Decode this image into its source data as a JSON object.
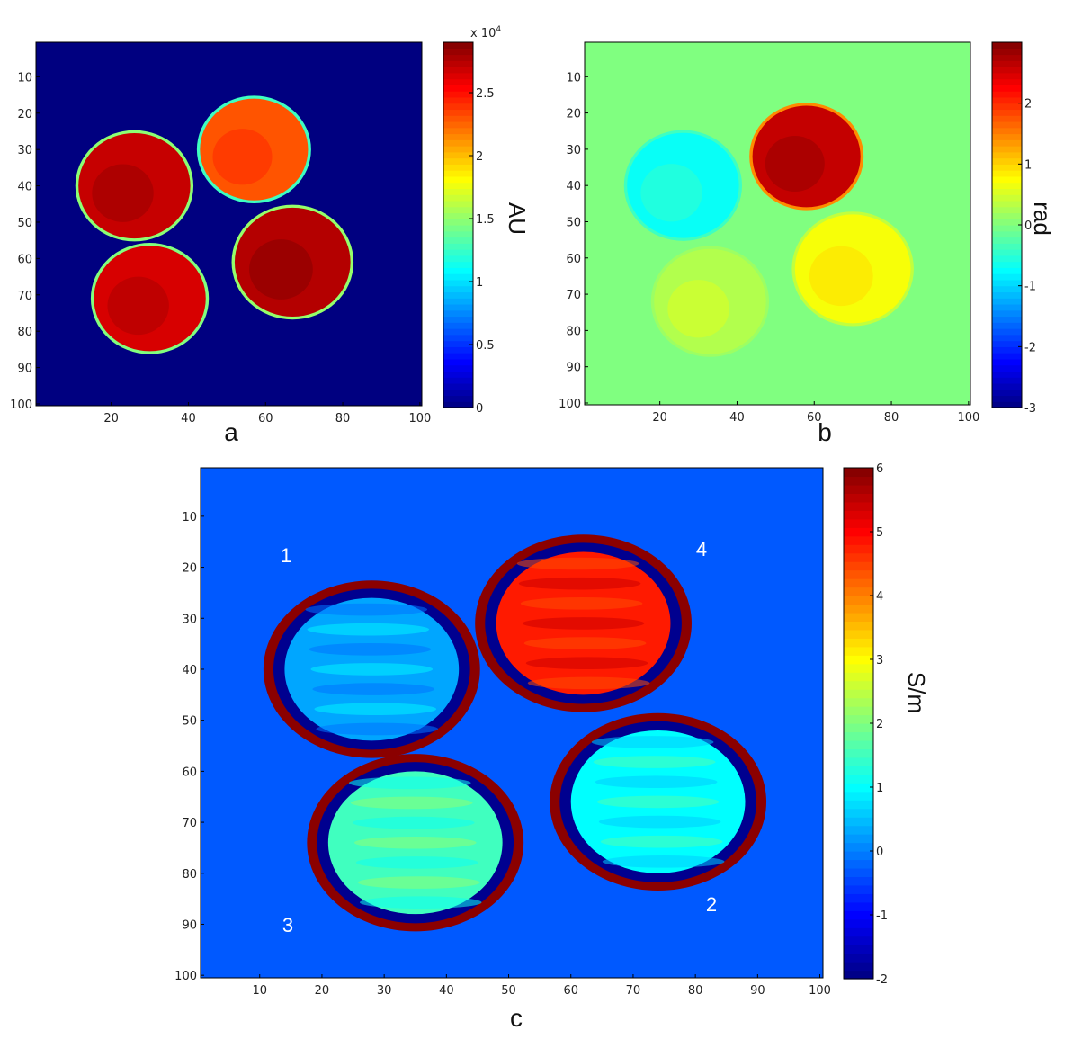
{
  "chart_data": [
    {
      "type": "heatmap",
      "panel_label": "a",
      "colorbar_label": "AU",
      "colorbar_exponent": "x 10",
      "colorbar_exponent_power": "4",
      "clim": [
        0,
        2.9
      ],
      "colorbar_ticks": [
        "0",
        "0.5",
        "1",
        "1.5",
        "2",
        "2.5"
      ],
      "colorbar_tick_values": [
        0,
        0.5,
        1,
        1.5,
        2,
        2.5
      ],
      "xlim": [
        1,
        100
      ],
      "ylim": [
        1,
        100
      ],
      "x_ticks": [
        "20",
        "40",
        "60",
        "80",
        "100"
      ],
      "y_ticks": [
        "10",
        "20",
        "30",
        "40",
        "50",
        "60",
        "70",
        "80",
        "90",
        "100"
      ],
      "background_value": 0,
      "colormap": "jet",
      "objects": [
        {
          "cx": 26,
          "cy": 40,
          "r": 14.5,
          "value": 2.7
        },
        {
          "cx": 57,
          "cy": 30,
          "r": 14,
          "value": 2.3
        },
        {
          "cx": 30,
          "cy": 71,
          "r": 14.5,
          "value": 2.65
        },
        {
          "cx": 67,
          "cy": 61,
          "r": 15,
          "value": 2.75
        }
      ]
    },
    {
      "type": "heatmap",
      "panel_label": "b",
      "colorbar_label": "rad",
      "clim": [
        -3,
        3
      ],
      "colorbar_ticks": [
        "-3",
        "-2",
        "-1",
        "0",
        "1",
        "2"
      ],
      "colorbar_tick_values": [
        -3,
        -2,
        -1,
        0,
        1,
        2
      ],
      "xlim": [
        1,
        100
      ],
      "ylim": [
        1,
        100
      ],
      "x_ticks": [
        "20",
        "40",
        "60",
        "80",
        "100"
      ],
      "y_ticks": [
        "10",
        "20",
        "30",
        "40",
        "50",
        "60",
        "70",
        "80",
        "90",
        "100"
      ],
      "background_value": 0,
      "colormap": "jet",
      "objects": [
        {
          "cx": 26,
          "cy": 40,
          "r": 14.5,
          "value": -0.7
        },
        {
          "cx": 58,
          "cy": 32,
          "r": 14,
          "value": 2.6
        },
        {
          "cx": 33,
          "cy": 72,
          "r": 14.5,
          "value": 0.3
        },
        {
          "cx": 70,
          "cy": 63,
          "r": 15,
          "value": 0.7
        }
      ]
    },
    {
      "type": "heatmap",
      "panel_label": "c",
      "colorbar_label": "S/m",
      "clim": [
        -2,
        6
      ],
      "colorbar_ticks": [
        "-2",
        "-1",
        "0",
        "1",
        "2",
        "3",
        "4",
        "5",
        "6"
      ],
      "colorbar_tick_values": [
        -2,
        -1,
        0,
        1,
        2,
        3,
        4,
        5,
        6
      ],
      "xlim": [
        1,
        100
      ],
      "ylim": [
        1,
        100
      ],
      "x_ticks": [
        "10",
        "20",
        "30",
        "40",
        "50",
        "60",
        "70",
        "80",
        "90",
        "100"
      ],
      "y_ticks": [
        "10",
        "20",
        "30",
        "40",
        "50",
        "60",
        "70",
        "80",
        "90",
        "100"
      ],
      "background_value": -0.3,
      "colormap": "jet",
      "objects": [
        {
          "label": "1",
          "cx": 28,
          "cy": 40,
          "r": 14,
          "value": 0.3
        },
        {
          "label": "4",
          "cx": 62,
          "cy": 31,
          "r": 14,
          "value": 4.8
        },
        {
          "label": "3",
          "cx": 35,
          "cy": 74,
          "r": 14,
          "value": 1.5
        },
        {
          "label": "2",
          "cx": 74,
          "cy": 66,
          "r": 14,
          "value": 1.0
        }
      ],
      "object_labels": [
        "1",
        "4",
        "3",
        "2"
      ]
    }
  ]
}
